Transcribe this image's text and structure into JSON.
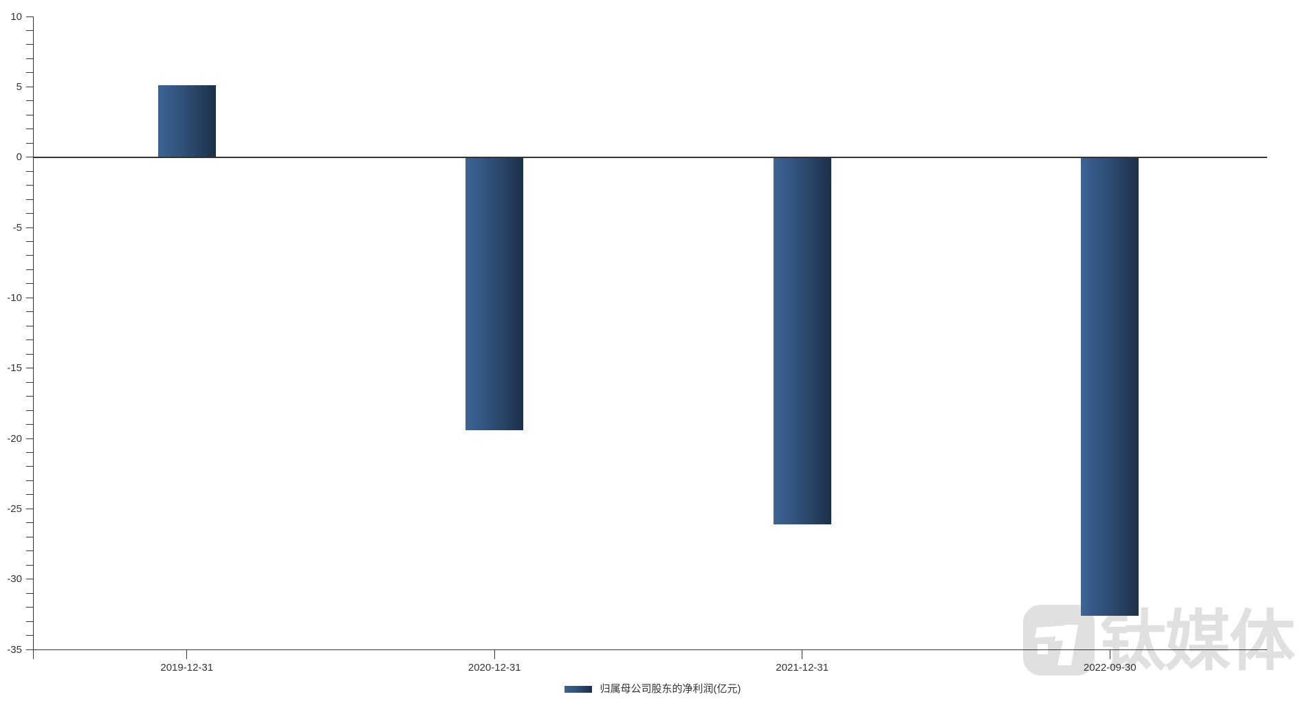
{
  "chart_data": {
    "type": "bar",
    "title": "",
    "categories": [
      "2019-12-31",
      "2020-12-31",
      "2021-12-31",
      "2022-09-30"
    ],
    "series": [
      {
        "name": "归属母公司股东的净利润(亿元)",
        "values": [
          5.1,
          -19.4,
          -26.1,
          -32.6
        ]
      }
    ],
    "xlabel": "",
    "ylabel": "",
    "ylim": [
      -35,
      10
    ],
    "y_minor_tick_step": 1,
    "y_label_step": 5,
    "y_tick_labels": [
      "10",
      "5",
      "0",
      "-5",
      "-10",
      "-15",
      "-20",
      "-25",
      "-30",
      "-35"
    ],
    "grid": false,
    "legend_position": "bottom-center",
    "bar_gradient_left": "#3d6493",
    "bar_gradient_mid": "#2c4a70",
    "bar_gradient_right": "#1d2f49",
    "axis_color": "#333333",
    "label_color": "#333333"
  },
  "legend": {
    "label": "归属母公司股东的净利润(亿元)"
  },
  "watermark": {
    "text": "钛媒体",
    "color": "#e0e0e0"
  }
}
